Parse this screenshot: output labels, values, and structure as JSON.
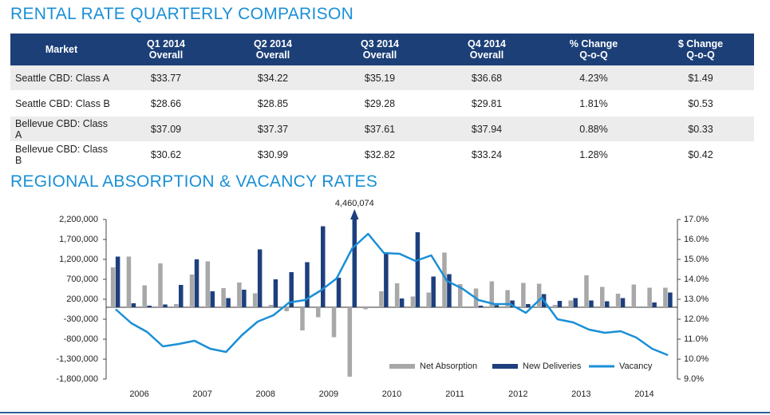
{
  "heading": "RENTAL RATE QUARTERLY COMPARISON",
  "table": {
    "header": [
      [
        "Market"
      ],
      [
        "Q1 2014",
        "Overall"
      ],
      [
        "Q2 2014",
        "Overall"
      ],
      [
        "Q3 2014",
        "Overall"
      ],
      [
        "Q4 2014",
        "Overall"
      ],
      [
        "% Change",
        "Q-o-Q"
      ],
      [
        "$ Change",
        "Q-o-Q"
      ]
    ],
    "rows": [
      [
        "Seattle CBD: Class A",
        "$33.77",
        "$34.22",
        "$35.19",
        "$36.68",
        "4.23%",
        "$1.49"
      ],
      [
        "Seattle CBD: Class B",
        "$28.66",
        "$28.85",
        "$29.28",
        "$29.81",
        "1.81%",
        "$0.53"
      ],
      [
        "Bellevue CBD: Class A",
        "$37.09",
        "$37.37",
        "$37.61",
        "$37.94",
        "0.88%",
        "$0.33"
      ],
      [
        "Bellevue CBD: Class B",
        "$30.62",
        "$30.99",
        "$32.82",
        "$33.24",
        "1.28%",
        "$0.42"
      ]
    ]
  },
  "chart_data": {
    "type": "bar_line",
    "title": "REGIONAL ABSORPTION & VACANCY RATES",
    "years": [
      "2006",
      "2007",
      "2008",
      "2009",
      "2010",
      "2011",
      "2012",
      "2013",
      "2014"
    ],
    "ylim": [
      -1800000,
      2200000
    ],
    "yticks": [
      {
        "value": -1800000,
        "label": "-1,800,000"
      },
      {
        "value": -1300000,
        "label": "-1,300,000"
      },
      {
        "value": -800000,
        "label": "-800,000"
      },
      {
        "value": -300000,
        "label": "-300,000"
      },
      {
        "value": 200000,
        "label": "200,000"
      },
      {
        "value": 700000,
        "label": "700,000"
      },
      {
        "value": 1200000,
        "label": "1,200,000"
      },
      {
        "value": 1700000,
        "label": "1,700,000"
      },
      {
        "value": 2200000,
        "label": "2,200,000"
      }
    ],
    "y2lim": [
      9,
      17
    ],
    "y2ticks": [
      {
        "value": 9,
        "label": "9.0%"
      },
      {
        "value": 10,
        "label": "10.0%"
      },
      {
        "value": 11,
        "label": "11.0%"
      },
      {
        "value": 12,
        "label": "12.0%"
      },
      {
        "value": 13,
        "label": "13.0%"
      },
      {
        "value": 14,
        "label": "14.0%"
      },
      {
        "value": 15,
        "label": "15.0%"
      },
      {
        "value": 16,
        "label": "16.0%"
      },
      {
        "value": 17,
        "label": "17.0%"
      }
    ],
    "series": [
      {
        "name": "Net Absorption",
        "color": "#a8a8a8",
        "kind": "bar",
        "values": [
          1000000,
          1270000,
          550000,
          1100000,
          80000,
          820000,
          1150000,
          480000,
          620000,
          350000,
          60000,
          -100000,
          -580000,
          -250000,
          -750000,
          -1740000,
          -50000,
          400000,
          600000,
          270000,
          370000,
          1370000,
          580000,
          470000,
          650000,
          430000,
          610000,
          590000,
          60000,
          170000,
          800000,
          510000,
          340000,
          570000,
          490000,
          490000
        ]
      },
      {
        "name": "New Deliveries",
        "color": "#1d3f7e",
        "kind": "bar",
        "values": [
          1270000,
          100000,
          40000,
          70000,
          560000,
          1200000,
          400000,
          230000,
          440000,
          1450000,
          700000,
          880000,
          1130000,
          2030000,
          740000,
          4460074,
          0,
          1350000,
          220000,
          1880000,
          770000,
          830000,
          0,
          40000,
          50000,
          170000,
          80000,
          330000,
          160000,
          230000,
          170000,
          150000,
          230000,
          0,
          120000,
          370000
        ],
        "value_labels": [
          null,
          null,
          null,
          null,
          null,
          null,
          null,
          null,
          null,
          null,
          null,
          null,
          null,
          null,
          null,
          "4,460,074",
          null,
          null,
          null,
          null,
          null,
          null,
          null,
          null,
          null,
          null,
          null,
          null,
          null,
          null,
          null,
          null,
          null,
          null,
          null,
          null
        ]
      },
      {
        "name": "Vacancy",
        "color": "#1a8fd6",
        "kind": "line",
        "axis": "y2",
        "values": [
          12.5,
          11.8,
          11.36,
          10.64,
          10.76,
          10.92,
          10.52,
          10.36,
          11.2,
          11.88,
          12.2,
          12.84,
          12.96,
          13.44,
          14.04,
          15.56,
          16.28,
          15.32,
          15.28,
          14.92,
          15.2,
          13.92,
          13.52,
          12.96,
          12.76,
          12.76,
          12.32,
          13.08,
          12.0,
          11.84,
          11.48,
          11.32,
          11.4,
          11.08,
          10.52,
          10.2
        ]
      }
    ]
  }
}
